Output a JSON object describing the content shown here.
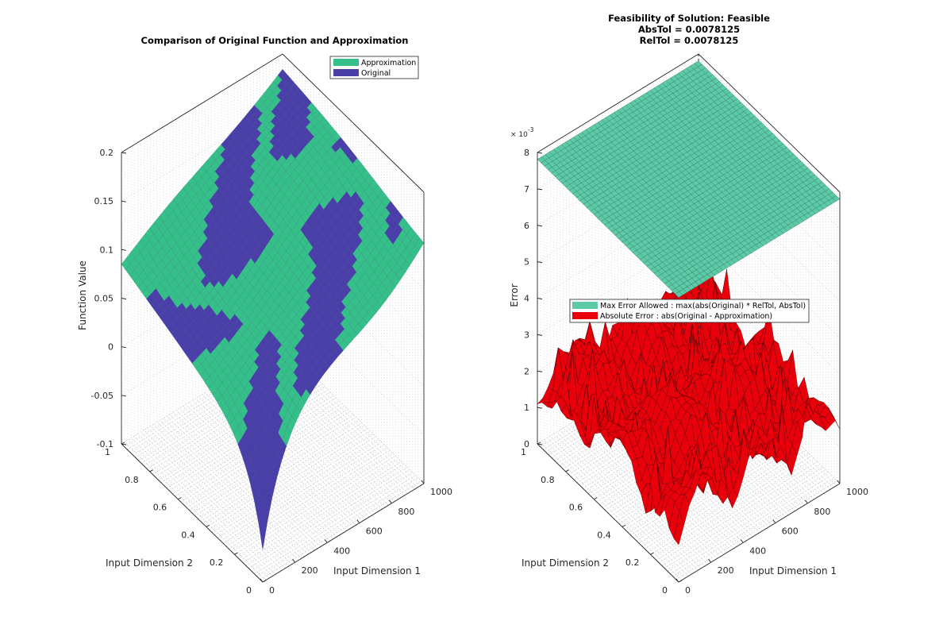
{
  "chart_data": [
    {
      "type": "surface3d",
      "title": "Comparison of Original Function and Approximation",
      "xlabel": "Input Dimension 1",
      "ylabel": "Input Dimension 2",
      "zlabel": "Function Value",
      "xlim": [
        0,
        1000
      ],
      "ylim": [
        0,
        1
      ],
      "zlim": [
        -0.1,
        0.2
      ],
      "xticks": [
        "0",
        "200",
        "400",
        "600",
        "800",
        "1000"
      ],
      "yticks": [
        "0",
        "0.2",
        "0.4",
        "0.6",
        "0.8",
        "1"
      ],
      "zticks": [
        "-0.1",
        "-0.05",
        "0",
        "0.05",
        "0.1",
        "0.15",
        "0.2"
      ],
      "grid": true,
      "legend_position": "top-right",
      "series": [
        {
          "name": "Approximation",
          "color": "#35c08a"
        },
        {
          "name": "Original",
          "color": "#4a3fa8"
        }
      ]
    },
    {
      "type": "surface3d",
      "title_lines": [
        "Feasibility of Solution: Feasible",
        "AbsTol = 0.0078125",
        "RelTol = 0.0078125"
      ],
      "xlabel": "Input Dimension 1",
      "ylabel": "Input Dimension 2",
      "zlabel": "Error",
      "z_exponent_base": "× 10",
      "z_exponent_power": "-3",
      "xlim": [
        0,
        1000
      ],
      "ylim": [
        0,
        1
      ],
      "zlim": [
        0,
        0.008
      ],
      "xticks": [
        "0",
        "200",
        "400",
        "600",
        "800",
        "1000"
      ],
      "yticks": [
        "0",
        "0.2",
        "0.4",
        "0.6",
        "0.8",
        "1"
      ],
      "zticks": [
        "0",
        "1",
        "2",
        "3",
        "4",
        "5",
        "6",
        "7",
        "8"
      ],
      "grid": true,
      "legend_position": "middle",
      "series": [
        {
          "name": "Max Error Allowed : max(abs(Original) * RelTol, AbsTol)",
          "color": "#5cc9a7",
          "constant_value": 0.0078125
        },
        {
          "name": "Absolute Error : abs(Original - Approximation)",
          "color": "#e8000b"
        }
      ]
    }
  ]
}
